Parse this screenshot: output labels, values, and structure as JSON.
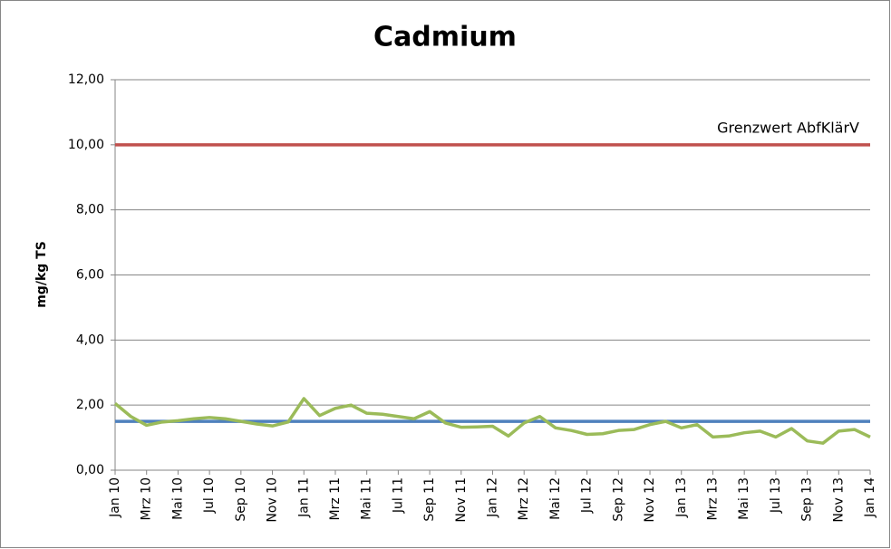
{
  "chart_data": {
    "type": "line",
    "title": "Cadmium",
    "y_label": "mg/kg TS",
    "categories": [
      "Jan 10",
      null,
      "Mrz 10",
      null,
      "Mai 10",
      null,
      "Jul 10",
      null,
      "Sep 10",
      null,
      "Nov 10",
      null,
      "Jan 11",
      null,
      "Mrz 11",
      null,
      "Mai 11",
      null,
      "Jul 11",
      null,
      "Sep 11",
      null,
      "Nov 11",
      null,
      "Jan 12",
      null,
      "Mrz 12",
      null,
      "Mai 12",
      null,
      "Jul 12",
      null,
      "Sep 12",
      null,
      "Nov 12",
      null,
      "Jan 13",
      null,
      "Mrz 13",
      null,
      "Mai 13",
      null,
      "Jul 13",
      null,
      "Sep 13",
      null,
      "Nov 13",
      null,
      "Jan 14"
    ],
    "series": [
      {
        "color": "#9bbb59",
        "values": [
          2.05,
          1.65,
          1.38,
          1.48,
          1.52,
          1.58,
          1.62,
          1.58,
          1.5,
          1.42,
          1.36,
          1.48,
          2.2,
          1.68,
          1.9,
          2.0,
          1.75,
          1.72,
          1.65,
          1.58,
          1.8,
          1.45,
          1.32,
          1.33,
          1.35,
          1.05,
          1.45,
          1.65,
          1.3,
          1.22,
          1.1,
          1.12,
          1.22,
          1.25,
          1.4,
          1.5,
          1.3,
          1.4,
          1.02,
          1.05,
          1.15,
          1.2,
          1.02,
          1.28,
          0.9,
          0.83,
          1.2,
          1.25,
          1.02
        ]
      }
    ],
    "reference_lines": [
      {
        "label": "Grenzwert AbfKlärV",
        "value": 10,
        "color": "#c0504d"
      },
      {
        "value": 1.5,
        "color": "#4f81bd"
      }
    ],
    "ylim": [
      0,
      12
    ],
    "yticks": [
      {
        "value": 0,
        "label": "0,00"
      },
      {
        "value": 2,
        "label": "2,00"
      },
      {
        "value": 4,
        "label": "4,00"
      },
      {
        "value": 6,
        "label": "6,00"
      },
      {
        "value": 8,
        "label": "8,00"
      },
      {
        "value": 10,
        "label": "10,00"
      },
      {
        "value": 12,
        "label": "12,00"
      }
    ],
    "grid": true
  }
}
